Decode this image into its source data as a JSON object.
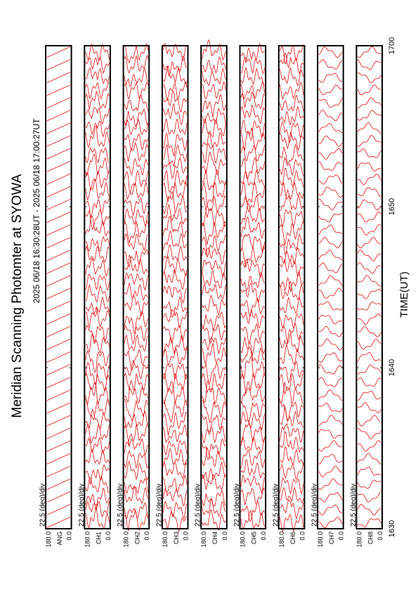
{
  "title": "Meridian Scanning Photomter at SYOWA",
  "subtitle": "2025 06/18 16:30:28UT - 2025 06/18 17:00:27UT",
  "chart_data": {
    "type": "line",
    "title": "Meridian Scanning Photomter at SYOWA",
    "subtitle": "2025 06/18 16:30:28UT - 2025 06/18 17:00:27UT",
    "xlabel": "TIME(UT)",
    "x_ticks": [
      "1630",
      "1640",
      "1650",
      "1700"
    ],
    "xlim": [
      "1630",
      "1700"
    ],
    "y_ticks": [
      "180.0",
      "0.0"
    ],
    "ylim": [
      0,
      180
    ],
    "scale_label": "22.5 (deg)/div",
    "grid": false,
    "series_color": "#e00000",
    "panels": [
      {
        "name": "ANG",
        "kind": "angle"
      },
      {
        "name": "CH1",
        "kind": "wavy"
      },
      {
        "name": "CH2",
        "kind": "wavy"
      },
      {
        "name": "CH3",
        "kind": "wavy"
      },
      {
        "name": "CH4",
        "kind": "wavy"
      },
      {
        "name": "CH5",
        "kind": "wavy"
      },
      {
        "name": "CH6",
        "kind": "wavy"
      },
      {
        "name": "CH7",
        "kind": "smooth"
      },
      {
        "name": "CH8",
        "kind": "smooth"
      }
    ]
  }
}
